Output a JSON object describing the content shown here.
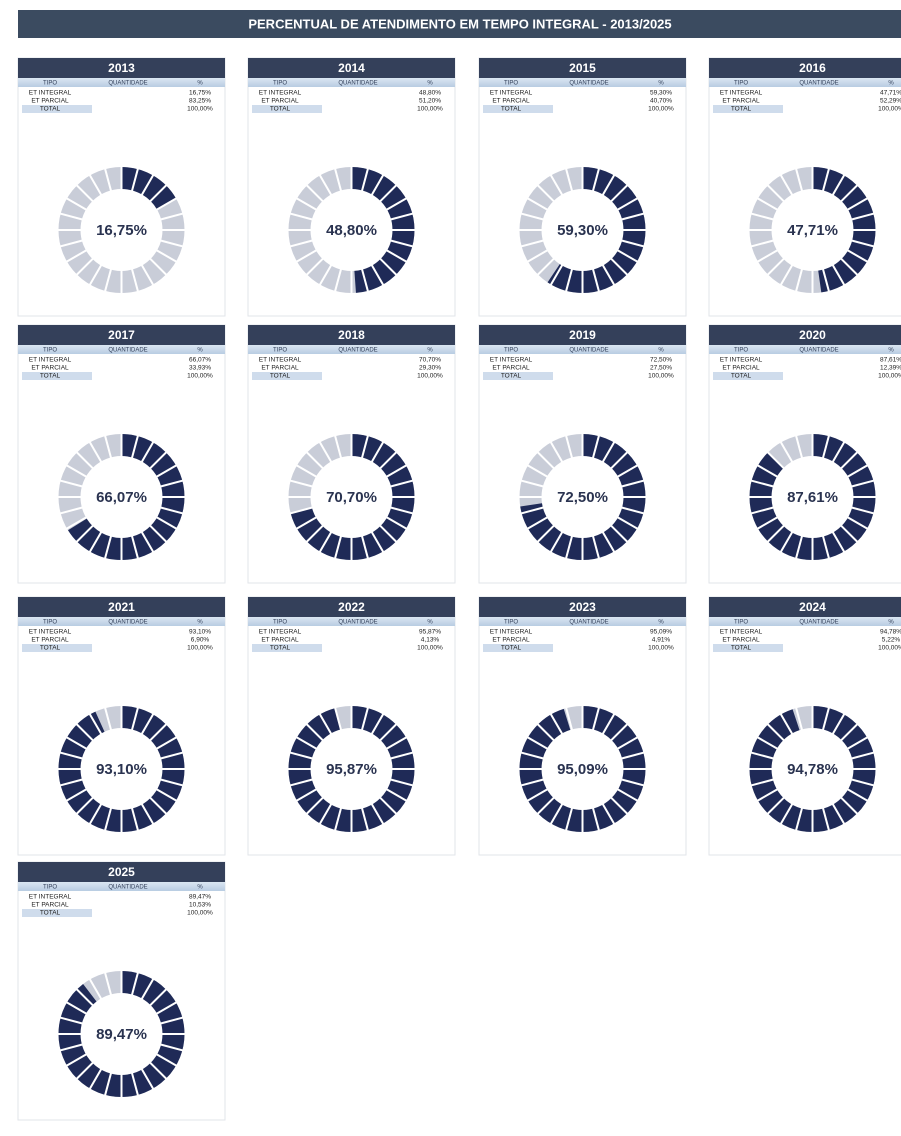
{
  "title": "PERCENTUAL DE ATENDIMENTO EM TEMPO INTEGRAL - 2013/2025",
  "chart_data": [
    {
      "type": "donut",
      "title": "2013",
      "values": [
        16.75
      ],
      "value_labels": [
        "16,75%"
      ],
      "color": "#1f2a57",
      "rest_color": "#c9cdd8",
      "table": {
        "header": [
          "TIPO",
          "QUANTIDADE",
          "%"
        ],
        "rows": [
          [
            "ET INTEGRAL",
            "16,75%"
          ],
          [
            "ET PARCIAL",
            "83,25%"
          ],
          [
            "TOTAL",
            "100,00%"
          ]
        ]
      }
    },
    {
      "type": "donut",
      "title": "2014",
      "values": [
        48.8
      ],
      "value_labels": [
        "48,80%"
      ],
      "color": "#1f2a57",
      "rest_color": "#c9cdd8",
      "table": {
        "header": [
          "TIPO",
          "QUANTIDADE",
          "%"
        ],
        "rows": [
          [
            "ET INTEGRAL",
            "48,80%"
          ],
          [
            "ET PARCIAL",
            "51,20%"
          ],
          [
            "TOTAL",
            "100,00%"
          ]
        ]
      }
    },
    {
      "type": "donut",
      "title": "2015",
      "values": [
        59.3
      ],
      "value_labels": [
        "59,30%"
      ],
      "color": "#1f2a57",
      "rest_color": "#c9cdd8",
      "table": {
        "header": [
          "TIPO",
          "QUANTIDADE",
          "%"
        ],
        "rows": [
          [
            "ET INTEGRAL",
            "59,30%"
          ],
          [
            "ET PARCIAL",
            "40,70%"
          ],
          [
            "TOTAL",
            "100,00%"
          ]
        ]
      }
    },
    {
      "type": "donut",
      "title": "2016",
      "values": [
        47.71
      ],
      "value_labels": [
        "47,71%"
      ],
      "color": "#1f2a57",
      "rest_color": "#c9cdd8",
      "table": {
        "header": [
          "TIPO",
          "QUANTIDADE",
          "%"
        ],
        "rows": [
          [
            "ET INTEGRAL",
            "47,71%"
          ],
          [
            "ET PARCIAL",
            "52,29%"
          ],
          [
            "TOTAL",
            "100,00%"
          ]
        ]
      }
    },
    {
      "type": "donut",
      "title": "2017",
      "values": [
        66.07
      ],
      "value_labels": [
        "66,07%"
      ],
      "color": "#1f2a57",
      "rest_color": "#c9cdd8",
      "table": {
        "header": [
          "TIPO",
          "QUANTIDADE",
          "%"
        ],
        "rows": [
          [
            "ET INTEGRAL",
            "66,07%"
          ],
          [
            "ET PARCIAL",
            "33,93%"
          ],
          [
            "TOTAL",
            "100,00%"
          ]
        ]
      }
    },
    {
      "type": "donut",
      "title": "2018",
      "values": [
        70.7
      ],
      "value_labels": [
        "70,70%"
      ],
      "color": "#1f2a57",
      "rest_color": "#c9cdd8",
      "table": {
        "header": [
          "TIPO",
          "QUANTIDADE",
          "%"
        ],
        "rows": [
          [
            "ET INTEGRAL",
            "70,70%"
          ],
          [
            "ET PARCIAL",
            "29,30%"
          ],
          [
            "TOTAL",
            "100,00%"
          ]
        ]
      }
    },
    {
      "type": "donut",
      "title": "2019",
      "values": [
        72.5
      ],
      "value_labels": [
        "72,50%"
      ],
      "color": "#1f2a57",
      "rest_color": "#c9cdd8",
      "table": {
        "header": [
          "TIPO",
          "QUANTIDADE",
          "%"
        ],
        "rows": [
          [
            "ET INTEGRAL",
            "72,50%"
          ],
          [
            "ET PARCIAL",
            "27,50%"
          ],
          [
            "TOTAL",
            "100,00%"
          ]
        ]
      }
    },
    {
      "type": "donut",
      "title": "2020",
      "values": [
        87.61
      ],
      "value_labels": [
        "87,61%"
      ],
      "color": "#1f2a57",
      "rest_color": "#c9cdd8",
      "table": {
        "header": [
          "TIPO",
          "QUANTIDADE",
          "%"
        ],
        "rows": [
          [
            "ET INTEGRAL",
            "87,61%"
          ],
          [
            "ET PARCIAL",
            "12,39%"
          ],
          [
            "TOTAL",
            "100,00%"
          ]
        ]
      }
    },
    {
      "type": "donut",
      "title": "2021",
      "values": [
        93.1
      ],
      "value_labels": [
        "93,10%"
      ],
      "color": "#1f2a57",
      "rest_color": "#c9cdd8",
      "table": {
        "header": [
          "TIPO",
          "QUANTIDADE",
          "%"
        ],
        "rows": [
          [
            "ET INTEGRAL",
            "93,10%"
          ],
          [
            "ET PARCIAL",
            "6,90%"
          ],
          [
            "TOTAL",
            "100,00%"
          ]
        ]
      }
    },
    {
      "type": "donut",
      "title": "2022",
      "values": [
        95.87
      ],
      "value_labels": [
        "95,87%"
      ],
      "color": "#1f2a57",
      "rest_color": "#c9cdd8",
      "table": {
        "header": [
          "TIPO",
          "QUANTIDADE",
          "%"
        ],
        "rows": [
          [
            "ET INTEGRAL",
            "95,87%"
          ],
          [
            "ET PARCIAL",
            "4,13%"
          ],
          [
            "TOTAL",
            "100,00%"
          ]
        ]
      }
    },
    {
      "type": "donut",
      "title": "2023",
      "values": [
        95.09
      ],
      "value_labels": [
        "95,09%"
      ],
      "color": "#1f2a57",
      "rest_color": "#c9cdd8",
      "table": {
        "header": [
          "TIPO",
          "QUANTIDADE",
          "%"
        ],
        "rows": [
          [
            "ET INTEGRAL",
            "95,09%"
          ],
          [
            "ET PARCIAL",
            "4,91%"
          ],
          [
            "TOTAL",
            "100,00%"
          ]
        ]
      }
    },
    {
      "type": "donut",
      "title": "2024",
      "values": [
        94.78
      ],
      "value_labels": [
        "94,78%"
      ],
      "color": "#1f2a57",
      "rest_color": "#c9cdd8",
      "table": {
        "header": [
          "TIPO",
          "QUANTIDADE",
          "%"
        ],
        "rows": [
          [
            "ET INTEGRAL",
            "94,78%"
          ],
          [
            "ET PARCIAL",
            "5,22%"
          ],
          [
            "TOTAL",
            "100,00%"
          ]
        ]
      }
    },
    {
      "type": "donut",
      "title": "2025",
      "values": [
        89.47
      ],
      "value_labels": [
        "89,47%"
      ],
      "color": "#1f2a57",
      "rest_color": "#c9cdd8",
      "table": {
        "header": [
          "TIPO",
          "QUANTIDADE",
          "%"
        ],
        "rows": [
          [
            "ET INTEGRAL",
            "89,47%"
          ],
          [
            "ET PARCIAL",
            "10,53%"
          ],
          [
            "TOTAL",
            "100,00%"
          ]
        ]
      }
    }
  ]
}
